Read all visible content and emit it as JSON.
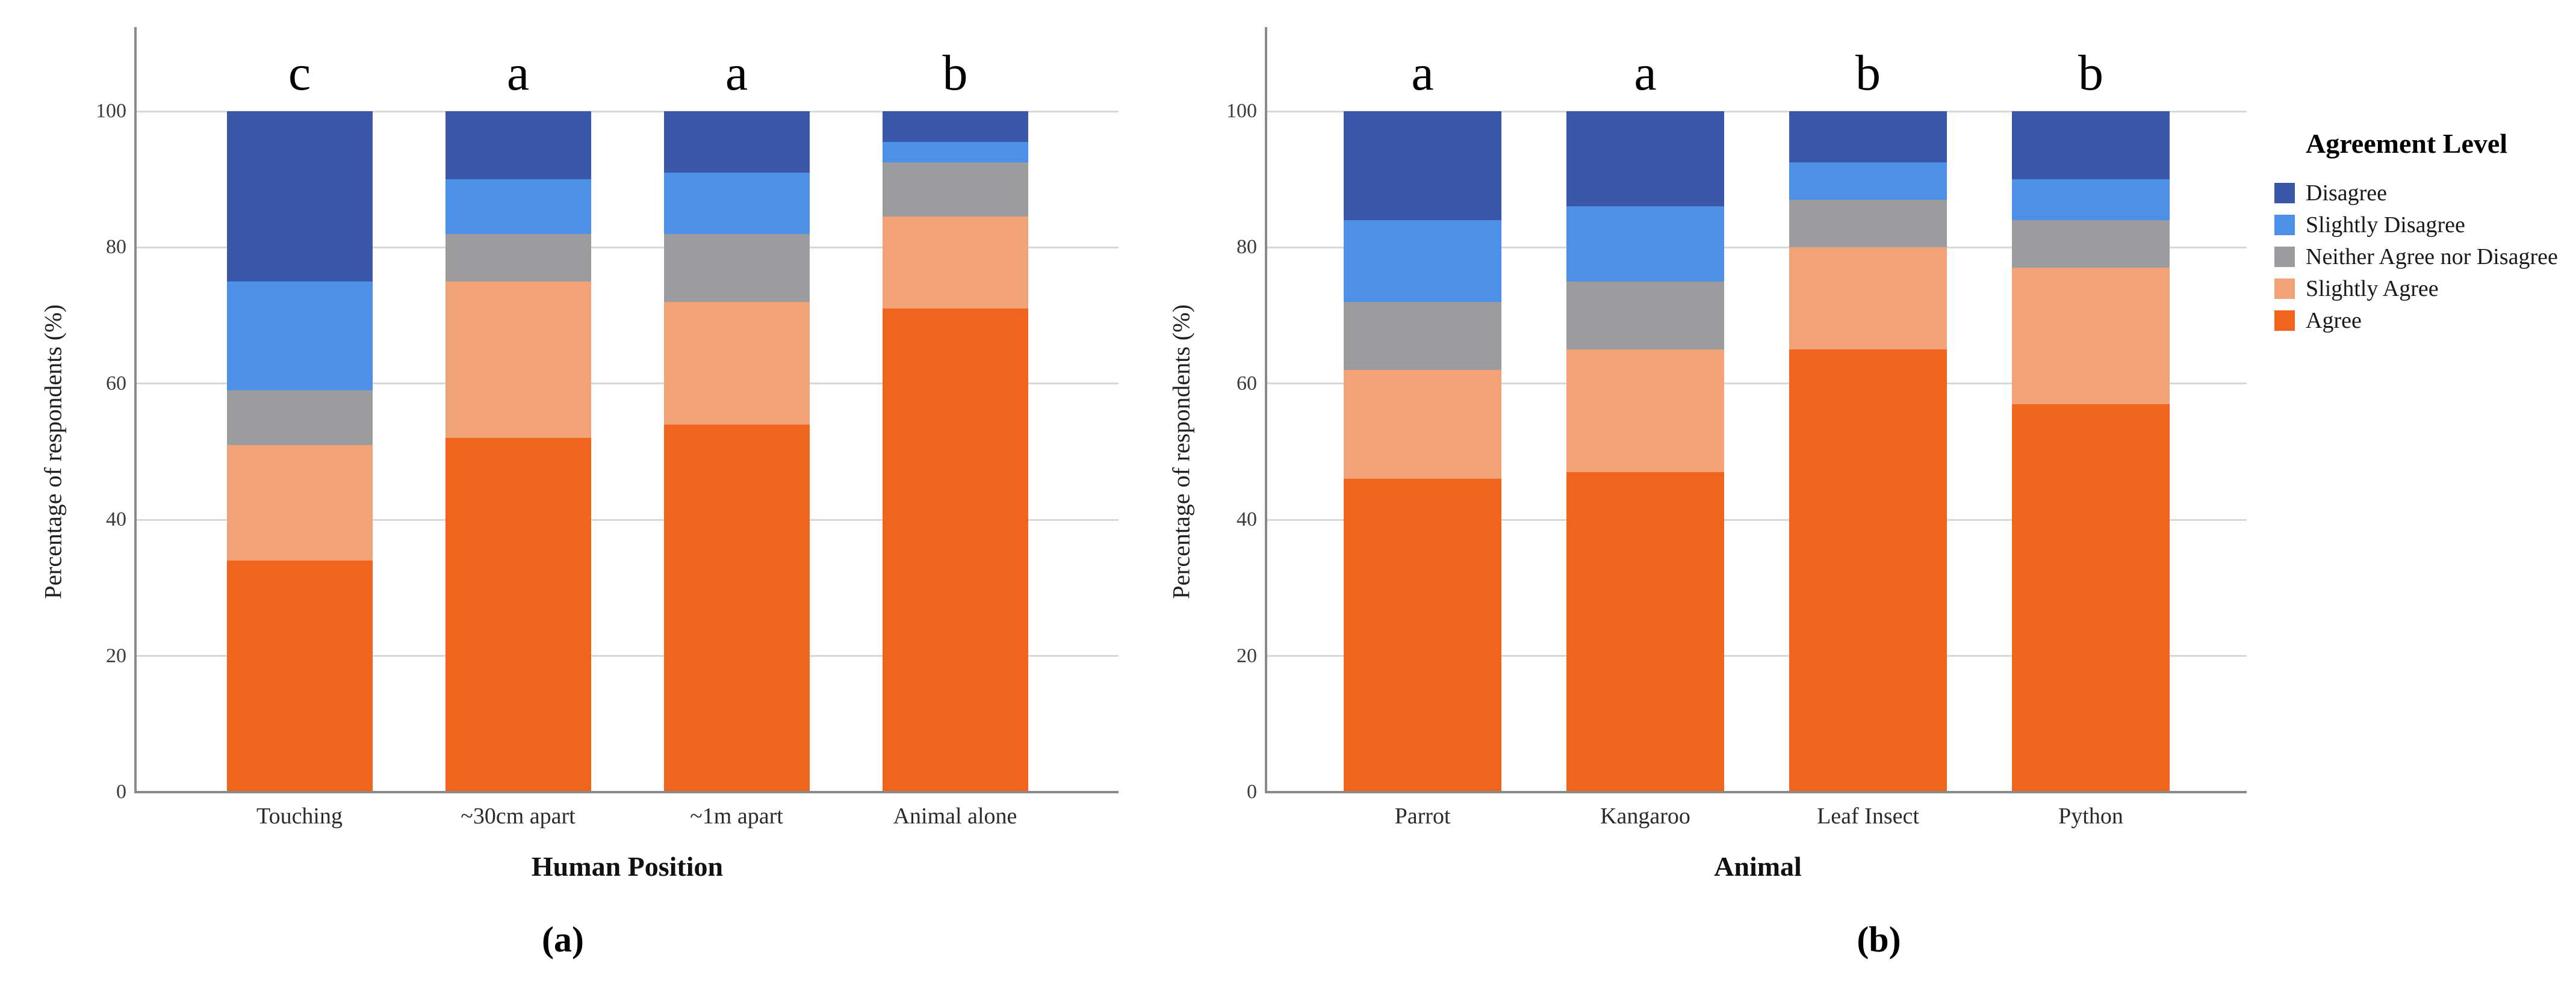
{
  "figure": {
    "background": "#ffffff",
    "text_color": "#1a1a1a",
    "gridline_color": "#d9d9d9",
    "axis_color": "#8a8a8a"
  },
  "legend": {
    "title": "Agreement Level",
    "position": "right",
    "items": [
      {
        "label": "Disagree",
        "color": "#3b57a8"
      },
      {
        "label": "Slightly Disagree",
        "color": "#4c90e8"
      },
      {
        "label": "Neither Agree nor Disagree",
        "color": "#9c9c9e"
      },
      {
        "label": "Slightly Agree",
        "color": "#f2a277"
      },
      {
        "label": "Agree",
        "color": "#f0641e"
      }
    ]
  },
  "chart_data": [
    {
      "id": "a",
      "type": "bar",
      "stacked": true,
      "caption": "(a)",
      "xlabel": "Human Position",
      "ylabel": "Percentage of respondents (%)",
      "categories": [
        "Touching",
        "~30cm apart",
        "~1m apart",
        "Animal alone"
      ],
      "bar_letters": [
        "c",
        "a",
        "a",
        "b"
      ],
      "yticks": [
        0,
        20,
        40,
        60,
        80,
        100
      ],
      "ylim": [
        0,
        100
      ],
      "grid": true,
      "series": [
        {
          "name": "Agree",
          "color": "#f0641e",
          "values": [
            34,
            52,
            54,
            71
          ]
        },
        {
          "name": "Slightly Agree",
          "color": "#f2a277",
          "values": [
            17,
            23,
            18,
            13.5
          ]
        },
        {
          "name": "Neither Agree nor Disagree",
          "color": "#9c9c9e",
          "values": [
            8,
            7,
            10,
            8
          ]
        },
        {
          "name": "Slightly Disagree",
          "color": "#4c90e8",
          "values": [
            16,
            8,
            9,
            3
          ]
        },
        {
          "name": "Disagree",
          "color": "#3b57a8",
          "values": [
            25,
            10,
            9,
            4.5
          ]
        }
      ]
    },
    {
      "id": "b",
      "type": "bar",
      "stacked": true,
      "caption": "(b)",
      "xlabel": "Animal",
      "ylabel": "Percentage of respondents (%)",
      "categories": [
        "Parrot",
        "Kangaroo",
        "Leaf Insect",
        "Python"
      ],
      "bar_letters": [
        "a",
        "a",
        "b",
        "b"
      ],
      "yticks": [
        0,
        20,
        40,
        60,
        80,
        100
      ],
      "ylim": [
        0,
        100
      ],
      "grid": true,
      "series": [
        {
          "name": "Agree",
          "color": "#f0641e",
          "values": [
            46,
            47,
            65,
            57
          ]
        },
        {
          "name": "Slightly Agree",
          "color": "#f2a277",
          "values": [
            16,
            18,
            15,
            20
          ]
        },
        {
          "name": "Neither Agree nor Disagree",
          "color": "#9c9c9e",
          "values": [
            10,
            10,
            7,
            7
          ]
        },
        {
          "name": "Slightly Disagree",
          "color": "#4c90e8",
          "values": [
            12,
            11,
            5.5,
            6
          ]
        },
        {
          "name": "Disagree",
          "color": "#3b57a8",
          "values": [
            16,
            14,
            7.5,
            10
          ]
        }
      ]
    }
  ]
}
